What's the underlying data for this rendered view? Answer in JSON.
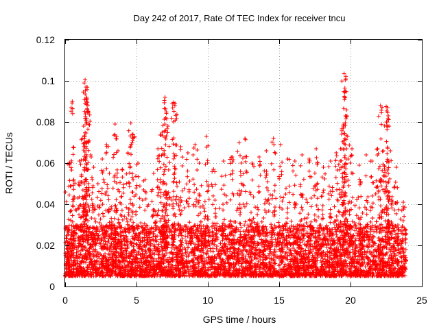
{
  "chart_data": {
    "type": "scatter",
    "title": "Day 242 of 2017, Rate Of TEC Index for receiver tncu",
    "xlabel": "GPS time / hours",
    "ylabel": "ROTI / TECUs",
    "xlim": [
      0,
      25
    ],
    "ylim": [
      0,
      0.12
    ],
    "x_ticks": [
      0,
      5,
      10,
      15,
      20,
      25
    ],
    "x_tick_labels": [
      "0",
      "5",
      "10",
      "15",
      "20",
      "25"
    ],
    "y_ticks": [
      0,
      0.02,
      0.04,
      0.06,
      0.08,
      0.1,
      0.12
    ],
    "y_tick_labels": [
      "0",
      "0.02",
      "0.04",
      "0.06",
      "0.08",
      "0.1",
      "0.12"
    ],
    "grid": true,
    "marker": "+",
    "color": "#ff0000",
    "x_data_range": [
      0,
      23.9
    ],
    "baseline_band": [
      0.005,
      0.03
    ],
    "series": [
      {
        "name": "ROTI",
        "points": [
          [
            0.1,
            0.009
          ],
          [
            0.2,
            0.012
          ],
          [
            0.3,
            0.06
          ],
          [
            0.5,
            0.09
          ],
          [
            0.6,
            0.052
          ],
          [
            0.9,
            0.043
          ],
          [
            1.0,
            0.061
          ],
          [
            1.2,
            0.072
          ],
          [
            1.3,
            0.068
          ],
          [
            1.4,
            0.1005
          ],
          [
            1.45,
            0.097
          ],
          [
            1.5,
            0.092
          ],
          [
            1.55,
            0.086
          ],
          [
            1.6,
            0.085
          ],
          [
            1.8,
            0.064
          ],
          [
            2.0,
            0.058
          ],
          [
            2.3,
            0.05
          ],
          [
            2.6,
            0.062
          ],
          [
            2.9,
            0.069
          ],
          [
            3.1,
            0.055
          ],
          [
            3.5,
            0.079
          ],
          [
            3.7,
            0.066
          ],
          [
            4.0,
            0.057
          ],
          [
            4.4,
            0.065
          ],
          [
            4.6,
            0.0795
          ],
          [
            4.7,
            0.074
          ],
          [
            5.1,
            0.06
          ],
          [
            5.6,
            0.052
          ],
          [
            6.2,
            0.055
          ],
          [
            6.5,
            0.067
          ],
          [
            6.8,
            0.075
          ],
          [
            6.95,
            0.0905
          ],
          [
            7.0,
            0.092
          ],
          [
            7.05,
            0.082
          ],
          [
            7.2,
            0.078
          ],
          [
            7.6,
            0.0895
          ],
          [
            7.7,
            0.089
          ],
          [
            8.1,
            0.068
          ],
          [
            8.6,
            0.065
          ],
          [
            9.1,
            0.069
          ],
          [
            9.4,
            0.06
          ],
          [
            9.9,
            0.073
          ],
          [
            10.4,
            0.057
          ],
          [
            11.1,
            0.061
          ],
          [
            11.7,
            0.063
          ],
          [
            12.2,
            0.07
          ],
          [
            12.6,
            0.072
          ],
          [
            13.1,
            0.06
          ],
          [
            13.6,
            0.063
          ],
          [
            14.1,
            0.066
          ],
          [
            14.6,
            0.072
          ],
          [
            15.1,
            0.069
          ],
          [
            15.6,
            0.062
          ],
          [
            16.1,
            0.061
          ],
          [
            16.6,
            0.064
          ],
          [
            17.1,
            0.062
          ],
          [
            17.6,
            0.067
          ],
          [
            18.1,
            0.058
          ],
          [
            18.6,
            0.061
          ],
          [
            19.0,
            0.065
          ],
          [
            19.3,
            0.067
          ],
          [
            19.5,
            0.078
          ],
          [
            19.55,
            0.1035
          ],
          [
            19.6,
            0.0965
          ],
          [
            19.65,
            0.083
          ],
          [
            19.8,
            0.073
          ],
          [
            20.1,
            0.067
          ],
          [
            20.6,
            0.059
          ],
          [
            21.1,
            0.064
          ],
          [
            21.5,
            0.061
          ],
          [
            21.9,
            0.067
          ],
          [
            22.1,
            0.088
          ],
          [
            22.3,
            0.066
          ],
          [
            22.5,
            0.0875
          ],
          [
            22.6,
            0.087
          ],
          [
            22.65,
            0.083
          ],
          [
            22.8,
            0.066
          ],
          [
            23.2,
            0.058
          ],
          [
            23.7,
            0.041
          ]
        ]
      }
    ]
  }
}
